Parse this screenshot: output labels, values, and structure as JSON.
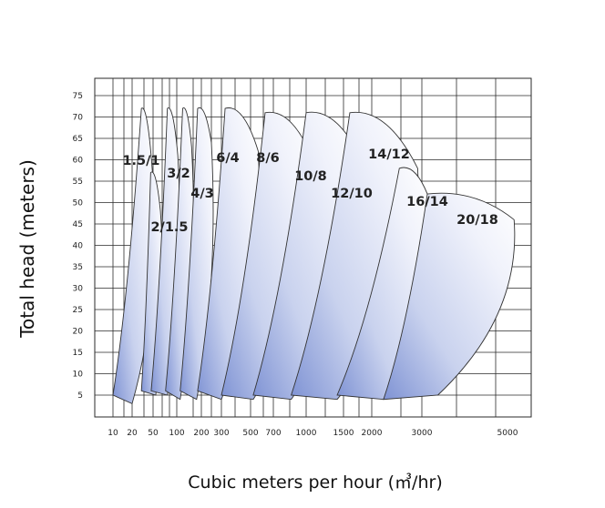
{
  "chart_data": {
    "type": "area",
    "title": "",
    "xlabel": "Cubic meters per hour (㎥/hr)",
    "ylabel": "Total head (meters)",
    "y_ticks": [
      "5",
      "10",
      "15",
      "20",
      "25",
      "30",
      "35",
      "40",
      "45",
      "50",
      "55",
      "60",
      "65",
      "70",
      "75"
    ],
    "x_ticks": [
      "10",
      "20",
      "50",
      "100",
      "200",
      "300",
      "500",
      "700",
      "1000",
      "1500",
      "2000",
      "3000",
      "5000"
    ],
    "ylim": [
      0,
      78
    ],
    "grid": true,
    "series": [
      {
        "name": "1.5/1",
        "outline": [
          [
            10,
            5
          ],
          [
            30,
            72
          ],
          [
            50,
            55
          ],
          [
            20,
            3
          ]
        ]
      },
      {
        "name": "2/1.5",
        "outline": [
          [
            30,
            6
          ],
          [
            45,
            57
          ],
          [
            62,
            48
          ],
          [
            54,
            5
          ]
        ]
      },
      {
        "name": "3/2",
        "outline": [
          [
            46,
            6
          ],
          [
            76,
            72
          ],
          [
            103,
            61
          ],
          [
            76,
            5
          ]
        ]
      },
      {
        "name": "4/3",
        "outline": [
          [
            72,
            6
          ],
          [
            118,
            72
          ],
          [
            152,
            63
          ],
          [
            110,
            4
          ]
        ]
      },
      {
        "name": "6/4",
        "outline": [
          [
            110,
            6
          ],
          [
            180,
            72
          ],
          [
            245,
            64
          ],
          [
            175,
            4
          ]
        ]
      },
      {
        "name": "8/6",
        "outline": [
          [
            180,
            6
          ],
          [
            320,
            72
          ],
          [
            560,
            62
          ],
          [
            300,
            4
          ]
        ]
      },
      {
        "name": "10/8",
        "outline": [
          [
            300,
            5
          ],
          [
            620,
            71
          ],
          [
            1100,
            59
          ],
          [
            520,
            4
          ]
        ]
      },
      {
        "name": "12/10",
        "outline": [
          [
            520,
            5
          ],
          [
            1000,
            71
          ],
          [
            1800,
            60
          ],
          [
            850,
            4
          ]
        ]
      },
      {
        "name": "14/12",
        "outline": [
          [
            850,
            5
          ],
          [
            1600,
            71
          ],
          [
            2900,
            58
          ],
          [
            1400,
            4
          ]
        ]
      },
      {
        "name": "16/14",
        "outline": [
          [
            1400,
            5
          ],
          [
            2500,
            58
          ],
          [
            3100,
            52
          ],
          [
            2200,
            4
          ]
        ]
      },
      {
        "name": "20/18",
        "outline": [
          [
            2200,
            4
          ],
          [
            3100,
            52
          ],
          [
            5200,
            46
          ],
          [
            3300,
            5
          ]
        ]
      }
    ]
  }
}
